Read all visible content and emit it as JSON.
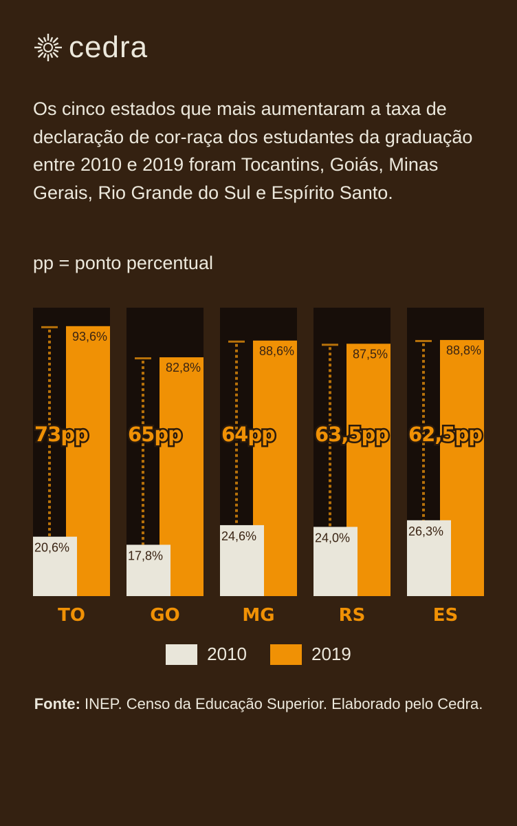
{
  "brand": {
    "name": "cedra"
  },
  "description": "Os cinco estados que mais aumentaram a taxa de declaração de cor-raça dos estudantes da graduação entre 2010 e 2019 foram Tocantins, Goiás, Minas Gerais, Rio Grande do Sul e Espírito Santo.",
  "note": "pp = ponto percentual",
  "source": {
    "label": "Fonte:",
    "text": " INEP. Censo da Educação Superior. Elaborado pelo Cedra."
  },
  "colors": {
    "background": "#342111",
    "panel": "#170e09",
    "y2010": "#e9e6da",
    "y2019": "#f09105",
    "line": "#b8720a"
  },
  "chart_data": {
    "type": "bar",
    "categories": [
      "TO",
      "GO",
      "MG",
      "RS",
      "ES"
    ],
    "series": [
      {
        "name": "2010",
        "values": [
          20.6,
          17.8,
          24.6,
          24.0,
          26.3
        ],
        "labels": [
          "20,6%",
          "17,8%",
          "24,6%",
          "24,0%",
          "26,3%"
        ]
      },
      {
        "name": "2019",
        "values": [
          93.6,
          82.8,
          88.6,
          87.5,
          88.8
        ],
        "labels": [
          "93,6%",
          "82,8%",
          "88,6%",
          "87,5%",
          "88,8%"
        ]
      }
    ],
    "differences": [
      "73pp",
      "65pp",
      "64pp",
      "63,5pp",
      "62,5pp"
    ],
    "ylim": [
      0,
      100
    ],
    "legend": "bottom"
  }
}
